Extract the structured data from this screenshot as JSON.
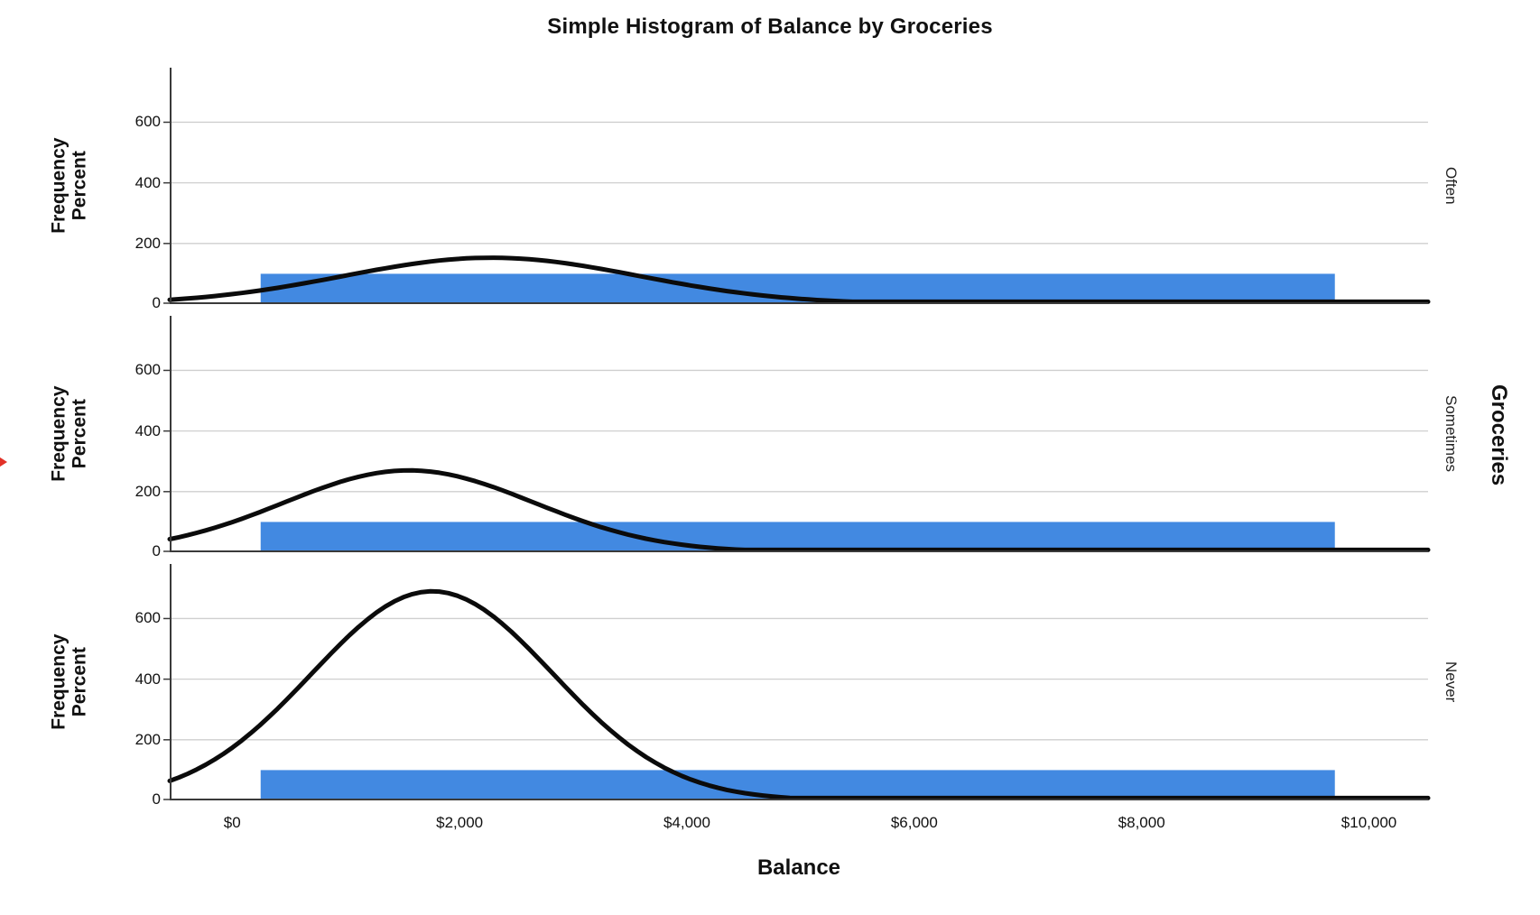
{
  "title": "Simple Histogram of Balance by Groceries",
  "x_axis": {
    "label": "Balance",
    "tick_labels": [
      "$0",
      "$2,000",
      "$4,000",
      "$6,000",
      "$8,000",
      "$10,000"
    ],
    "tick_values": [
      0,
      2000,
      4000,
      6000,
      8000,
      10000
    ]
  },
  "y_axis": {
    "label": "Frequency Percent",
    "label_lines": [
      "Frequency",
      "Percent"
    ],
    "tick_values": [
      0,
      200,
      400,
      600
    ]
  },
  "panel_axis_title": "Groceries",
  "chart_data": {
    "type": "histogram",
    "title": "Simple Histogram of Balance by Groceries",
    "xlabel": "Balance",
    "ylabel": "Frequency Percent",
    "panel_variable": "Groceries",
    "x_range": [
      -550,
      10520
    ],
    "y_range": [
      0,
      780
    ],
    "y_ticks": [
      0,
      200,
      400,
      600
    ],
    "x_ticks": [
      0,
      2000,
      4000,
      6000,
      8000,
      10000
    ],
    "x_tick_labels": [
      "$0",
      "$2,000",
      "$4,000",
      "$6,000",
      "$8,000",
      "$10,000"
    ],
    "grid": "horizontal",
    "legend": "none",
    "bar_bin": {
      "x_start": 250,
      "x_end": 9700
    },
    "panels": [
      {
        "category": "Often",
        "bar_height_percent": 100,
        "normal_curve": {
          "mean": 2280,
          "sd": 1300,
          "peak": 153
        }
      },
      {
        "category": "Sometimes",
        "bar_height_percent": 100,
        "normal_curve": {
          "mean": 1555,
          "sd": 1100,
          "peak": 270
        }
      },
      {
        "category": "Never",
        "bar_height_percent": 100,
        "normal_curve": {
          "mean": 1760,
          "sd": 1060,
          "peak": 690
        }
      }
    ],
    "colors": {
      "bar": "#4289e1",
      "curve": "#0b0b0b",
      "gridline": "#cfcfcf",
      "axis": "#3a3a3a",
      "text": "#111111"
    }
  },
  "annotations": [
    {
      "type": "arrow",
      "direction": "right",
      "color": "#e23128",
      "position": "left-edge-middle"
    }
  ]
}
